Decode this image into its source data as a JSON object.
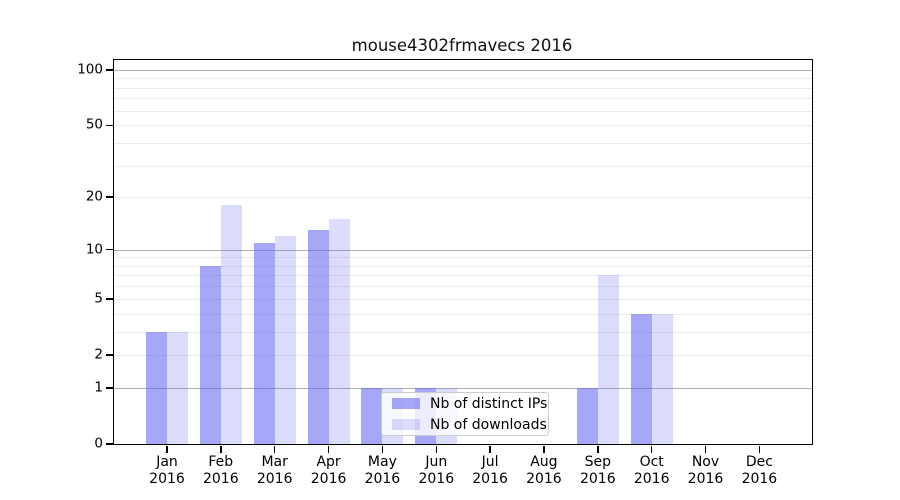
{
  "title": "mouse4302frmavecs 2016",
  "legend": {
    "items": [
      {
        "label": "Nb of distinct IPs",
        "color": "rgba(88,88,240,0.53)"
      },
      {
        "label": "Nb of downloads",
        "color": "rgba(88,88,240,0.21)"
      }
    ]
  },
  "axes": {
    "year_label": "2016",
    "months": [
      "Jan",
      "Feb",
      "Mar",
      "Apr",
      "May",
      "Jun",
      "Jul",
      "Aug",
      "Sep",
      "Oct",
      "Nov",
      "Dec"
    ],
    "yticks_labeled": [
      0,
      1,
      2,
      5,
      10,
      20,
      50,
      100
    ],
    "gridlines_major": [
      1,
      10,
      100
    ],
    "gridlines_minor": [
      2,
      3,
      4,
      5,
      6,
      7,
      8,
      9,
      20,
      30,
      40,
      50,
      60,
      70,
      80,
      90
    ]
  },
  "chart_data": {
    "type": "bar",
    "title": "mouse4302frmavecs 2016",
    "categories": [
      "Jan 2016",
      "Feb 2016",
      "Mar 2016",
      "Apr 2016",
      "May 2016",
      "Jun 2016",
      "Jul 2016",
      "Aug 2016",
      "Sep 2016",
      "Oct 2016",
      "Nov 2016",
      "Dec 2016"
    ],
    "series": [
      {
        "name": "Nb of distinct IPs",
        "color": "rgba(88,88,240,0.53)",
        "values": [
          3,
          8,
          11,
          13,
          1,
          1,
          0,
          0,
          1,
          4,
          0,
          0
        ]
      },
      {
        "name": "Nb of downloads",
        "color": "rgba(88,88,240,0.21)",
        "values": [
          3,
          18,
          12,
          15,
          1,
          1,
          0,
          0,
          7,
          4,
          0,
          0
        ]
      }
    ],
    "xlabel": "",
    "ylabel": "",
    "yscale": "log10(1+y)",
    "ylim": [
      0,
      113
    ],
    "yticks": [
      0,
      1,
      2,
      5,
      10,
      20,
      50,
      100
    ],
    "grid": true,
    "legend_position": "lower center"
  }
}
